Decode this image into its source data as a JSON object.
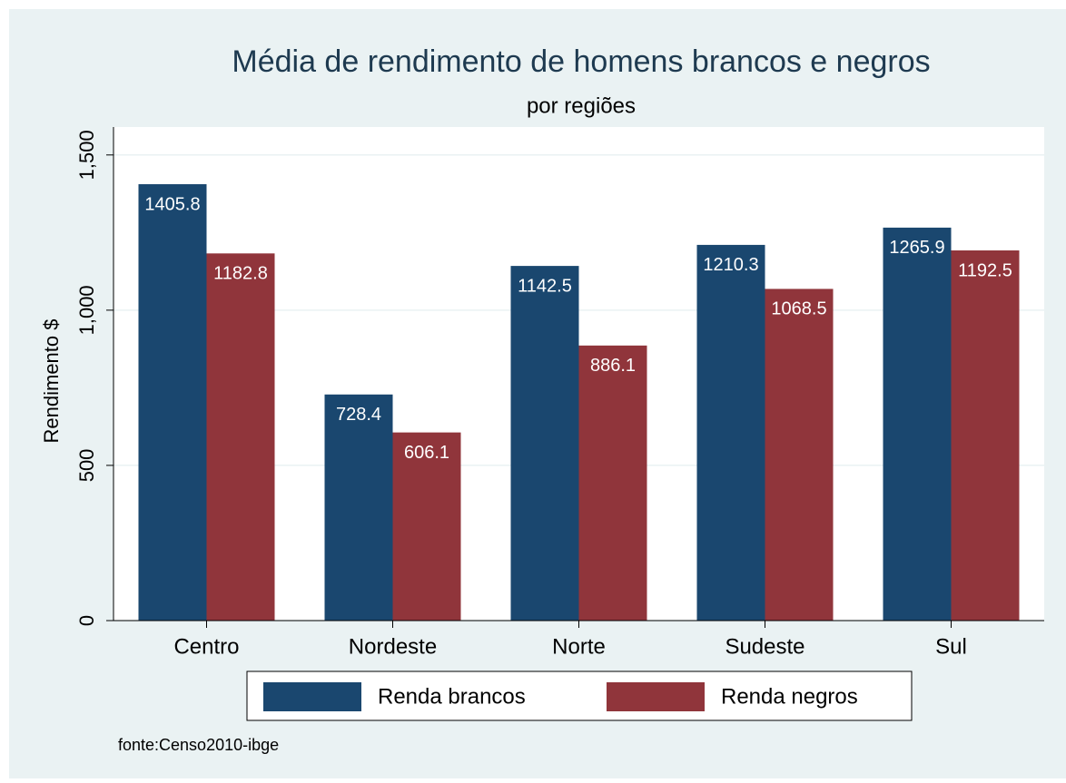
{
  "chart_data": {
    "type": "bar",
    "title": "Média de rendimento de homens brancos e negros",
    "subtitle": "por regiões",
    "ylabel": "Rendimento $",
    "note": "fonte:Censo2010-ibge",
    "categories": [
      "Centro",
      "Nordeste",
      "Norte",
      "Sudeste",
      "Sul"
    ],
    "series": [
      {
        "name": "Renda brancos",
        "color": "#1a476f",
        "values": [
          1405.8,
          728.4,
          1142.5,
          1210.3,
          1265.9
        ]
      },
      {
        "name": "Renda negros",
        "color": "#90353b",
        "values": [
          1182.8,
          606.1,
          886.1,
          1068.5,
          1192.5
        ]
      }
    ],
    "ylim": [
      0,
      1590
    ],
    "yticks": [
      0,
      500,
      {
        "value": 1000,
        "label": "1,000"
      },
      {
        "value": 1500,
        "label": "1,500"
      }
    ],
    "grid": true,
    "legend": "bottom"
  }
}
